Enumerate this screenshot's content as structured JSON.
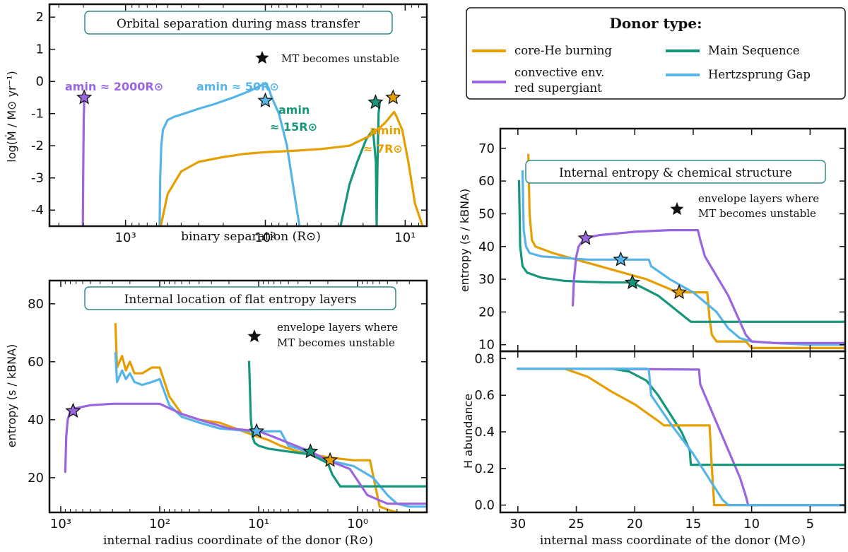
{
  "colors": {
    "core_he": "#E69F00",
    "rsg": "#9966E0",
    "ms": "#16967A",
    "hg": "#56B4E9",
    "title_box_border": "#2E8B8B"
  },
  "legend": {
    "title": "Donor type:",
    "entries": [
      {
        "key": "core_he",
        "label": "core-He burning"
      },
      {
        "key": "rsg",
        "label": "convective env.",
        "label2": "red supergiant"
      },
      {
        "key": "ms",
        "label": "Main Sequence"
      },
      {
        "key": "hg",
        "label": "Hertzsprung Gap"
      }
    ]
  },
  "chart_data": [
    {
      "id": "panel_a",
      "type": "line",
      "title": "Orbital separation during mass transfer",
      "xlabel": "binary separation (R⊙)",
      "ylabel": "log(Ṁ / M⊙ yr⁻¹)",
      "xscale": "log-reversed",
      "xlim": [
        3500,
        7
      ],
      "ylim": [
        -4.5,
        2.4
      ],
      "xticks": [
        {
          "v": 1000,
          "label": "10³"
        },
        {
          "v": 100,
          "label": "10²"
        },
        {
          "v": 10,
          "label": "10¹"
        }
      ],
      "yticks": [
        -4,
        -3,
        -2,
        -1,
        0,
        1,
        2
      ],
      "annotation": "MT becomes unstable",
      "amin_labels": [
        {
          "key": "rsg",
          "line1": "amin ≈ 2000R⊙"
        },
        {
          "key": "hg",
          "line1": "amin ≈ 50R⊙"
        },
        {
          "key": "ms",
          "line1": "amin",
          "line2": "≈ 15R⊙"
        },
        {
          "key": "core_he",
          "line1": "amin",
          "line2": "≈ 7R⊙"
        }
      ],
      "series": [
        {
          "key": "rsg",
          "x": [
            2020,
            2010,
            2000,
            1990,
            1980,
            1975
          ],
          "y": [
            -4.5,
            -3.0,
            -2.0,
            -1.2,
            -0.8,
            -0.5
          ]
        },
        {
          "key": "hg",
          "x": [
            570,
            565,
            555,
            540,
            500,
            450,
            380,
            300,
            230,
            170,
            130,
            110,
            100,
            95,
            90,
            80,
            70,
            62,
            57
          ],
          "y": [
            -4.5,
            -3.0,
            -2.0,
            -1.5,
            -1.2,
            -1.1,
            -1.0,
            -0.85,
            -0.7,
            -0.5,
            -0.3,
            -0.15,
            -0.05,
            -0.2,
            -0.5,
            -1.0,
            -2.0,
            -3.5,
            -4.5
          ]
        },
        {
          "key": "ms",
          "x": [
            29,
            25,
            22,
            19,
            17,
            16.2,
            16,
            15.8,
            15.5,
            15.2
          ],
          "y": [
            -4.5,
            -3.2,
            -2.5,
            -1.8,
            -1.5,
            -2.5,
            -4.5,
            -2.8,
            -1.0,
            -0.65
          ]
        },
        {
          "key": "core_he",
          "x": [
            560,
            500,
            400,
            300,
            200,
            140,
            100,
            60,
            40,
            25,
            18,
            14,
            12,
            11.5,
            10.5,
            9.5,
            8.5,
            7.5
          ],
          "y": [
            -4.5,
            -3.5,
            -2.8,
            -2.5,
            -2.35,
            -2.25,
            -2.2,
            -2.15,
            -2.1,
            -2.0,
            -1.7,
            -1.3,
            -0.95,
            -1.1,
            -1.5,
            -2.5,
            -3.8,
            -4.5
          ]
        }
      ],
      "stars": [
        {
          "key": "rsg",
          "x": 1975,
          "y": -0.5
        },
        {
          "key": "hg",
          "x": 100,
          "y": -0.6
        },
        {
          "key": "ms",
          "x": 16.3,
          "y": -0.65
        },
        {
          "key": "core_he",
          "x": 12.2,
          "y": -0.5
        }
      ]
    },
    {
      "id": "panel_b",
      "type": "line",
      "title": "Internal location of flat entropy layers",
      "xlabel": "internal radius coordinate of the donor (R⊙)",
      "ylabel": "entropy (s / kBNA)",
      "xscale": "log-reversed",
      "xlim": [
        1300,
        0.2
      ],
      "ylim": [
        8,
        88
      ],
      "xticks": [
        {
          "v": 1000,
          "label": "10³"
        },
        {
          "v": 100,
          "label": "10²"
        },
        {
          "v": 10,
          "label": "10¹"
        },
        {
          "v": 1,
          "label": "10⁰"
        }
      ],
      "yticks": [
        20,
        40,
        60,
        80
      ],
      "annotation": "envelope layers where",
      "annotation2": "MT becomes unstable",
      "series": [
        {
          "key": "core_he",
          "x": [
            280,
            270,
            240,
            220,
            200,
            180,
            150,
            120,
            100,
            80,
            60,
            40,
            25,
            12,
            8,
            6,
            4,
            2,
            1.1,
            1.0,
            0.75,
            0.6,
            0.5,
            0.4,
            0.3,
            0.2
          ],
          "y": [
            73,
            58,
            62,
            57,
            60,
            56,
            56,
            58,
            58,
            48,
            42,
            40,
            39,
            35,
            33,
            31,
            29,
            27,
            26,
            26,
            26,
            10,
            9,
            8,
            8,
            8
          ]
        },
        {
          "key": "hg",
          "x": [
            280,
            270,
            240,
            220,
            200,
            180,
            150,
            120,
            100,
            80,
            60,
            40,
            25,
            12,
            10,
            8,
            6,
            5,
            4,
            2,
            1.1,
            0.7,
            0.5,
            0.4,
            0.3,
            0.2
          ],
          "y": [
            63,
            53,
            57,
            54,
            56,
            53,
            52,
            53,
            54,
            45,
            41,
            39,
            37,
            36,
            36,
            36,
            36,
            31,
            30,
            26,
            24,
            20,
            14,
            11,
            10,
            10
          ]
        },
        {
          "key": "ms",
          "x": [
            12.5,
            12,
            11.5,
            11,
            10,
            8,
            5,
            3,
            2,
            1.8,
            1.5,
            1.0,
            0.5,
            0.3,
            0.2
          ],
          "y": [
            60,
            40,
            34,
            32,
            31,
            30,
            29,
            28,
            25,
            21,
            17,
            17,
            17,
            17,
            17
          ]
        },
        {
          "key": "rsg",
          "x": [
            900,
            880,
            850,
            800,
            700,
            500,
            300,
            200,
            100,
            60,
            40,
            20,
            10,
            7,
            5,
            3,
            2,
            1.2,
            1.0,
            0.8,
            0.5,
            0.3,
            0.2
          ],
          "y": [
            22,
            34,
            40,
            43,
            44,
            45,
            45.5,
            45.5,
            45.5,
            42,
            40,
            37,
            36,
            34,
            32,
            29,
            26,
            23,
            19,
            14,
            11,
            11,
            11
          ]
        }
      ],
      "stars": [
        {
          "key": "rsg",
          "x": 750,
          "y": 43
        },
        {
          "key": "hg",
          "x": 10.5,
          "y": 36
        },
        {
          "key": "ms",
          "x": 3.0,
          "y": 29
        },
        {
          "key": "core_he",
          "x": 1.9,
          "y": 26
        }
      ]
    },
    {
      "id": "panel_c",
      "type": "line",
      "title": "Internal entropy & chemical structure",
      "xlabel": "",
      "ylabel": "entropy (s / kBNA)",
      "xscale": "linear-reversed",
      "xlim": [
        31.5,
        2
      ],
      "ylim": [
        8,
        76
      ],
      "xticks": [
        30,
        25,
        20,
        15,
        10,
        5
      ],
      "yticks": [
        10,
        20,
        30,
        40,
        50,
        60,
        70
      ],
      "annotation": "envelope layers where",
      "annotation2": "MT becomes unstable",
      "series": [
        {
          "key": "core_he",
          "x": [
            29.1,
            29.0,
            28.8,
            28.5,
            27,
            25,
            23,
            21,
            19,
            17,
            16.5,
            13.8,
            13.6,
            13.4,
            13,
            10.5,
            10,
            5,
            2
          ],
          "y": [
            68,
            50,
            42,
            40,
            38,
            36,
            34,
            32,
            30,
            27,
            26,
            26,
            18,
            13,
            11,
            11,
            9,
            9,
            9
          ]
        },
        {
          "key": "hg",
          "x": [
            29.6,
            29.5,
            29.3,
            29,
            28,
            26,
            24,
            22,
            21.2,
            18.8,
            18.6,
            17,
            15,
            13,
            12,
            11,
            10,
            8,
            5,
            2
          ],
          "y": [
            63,
            45,
            40,
            38,
            37,
            36.5,
            36,
            36,
            36,
            36,
            34,
            30,
            26,
            20,
            15,
            12,
            11,
            10.5,
            10,
            10
          ]
        },
        {
          "key": "ms",
          "x": [
            29.9,
            29.8,
            29.6,
            29.2,
            28,
            26,
            24,
            22,
            20.2,
            18,
            15.2,
            15,
            10,
            5,
            2
          ],
          "y": [
            60,
            40,
            34,
            32,
            30.5,
            29.5,
            29.2,
            29,
            29,
            25,
            17,
            17,
            17,
            17,
            17
          ]
        },
        {
          "key": "rsg",
          "x": [
            25.3,
            25.2,
            25.0,
            24.8,
            24.3,
            23,
            20,
            17,
            14.6,
            14.4,
            14,
            12,
            11,
            10.5,
            10,
            8,
            5,
            2
          ],
          "y": [
            22,
            30,
            37,
            40,
            42.5,
            43.5,
            44.5,
            45,
            45,
            42,
            37,
            25,
            17,
            13,
            11,
            10.5,
            10.5,
            10.5
          ]
        }
      ],
      "stars": [
        {
          "key": "rsg",
          "x": 24.2,
          "y": 42.5
        },
        {
          "key": "hg",
          "x": 21.2,
          "y": 36
        },
        {
          "key": "ms",
          "x": 20.2,
          "y": 29
        },
        {
          "key": "core_he",
          "x": 16.2,
          "y": 26
        }
      ]
    },
    {
      "id": "panel_d",
      "type": "line",
      "title": "",
      "xlabel": "internal mass coordinate of the donor (M⊙)",
      "ylabel": "H abundance",
      "xscale": "linear-reversed",
      "xlim": [
        31.5,
        2
      ],
      "ylim": [
        -0.04,
        0.84
      ],
      "xticks": [
        30,
        25,
        20,
        15,
        10,
        5
      ],
      "yticks": [
        0.0,
        0.2,
        0.4,
        0.6,
        0.8
      ],
      "series": [
        {
          "key": "rsg",
          "x": [
            30,
            24.5,
            14.5,
            14.4,
            14,
            13,
            12,
            11,
            10.5,
            10.3,
            2
          ],
          "y": [
            0.745,
            0.745,
            0.74,
            0.66,
            0.6,
            0.45,
            0.3,
            0.15,
            0.05,
            0.0,
            0.0
          ]
        },
        {
          "key": "ms",
          "x": [
            30,
            22,
            20.5,
            19,
            18,
            17,
            16,
            15.3,
            15.2,
            10,
            2
          ],
          "y": [
            0.745,
            0.745,
            0.73,
            0.68,
            0.6,
            0.5,
            0.4,
            0.3,
            0.22,
            0.22,
            0.22
          ]
        },
        {
          "key": "core_he",
          "x": [
            30,
            26,
            24,
            22,
            20,
            18,
            17.5,
            16,
            13.6,
            13.4,
            13.2,
            2
          ],
          "y": [
            0.745,
            0.745,
            0.7,
            0.62,
            0.55,
            0.46,
            0.435,
            0.435,
            0.435,
            0.2,
            0.0,
            0.0
          ]
        },
        {
          "key": "hg",
          "x": [
            30,
            19,
            18.8,
            18.6,
            17,
            15,
            14,
            13,
            12.5,
            12,
            2
          ],
          "y": [
            0.745,
            0.745,
            0.74,
            0.6,
            0.45,
            0.28,
            0.18,
            0.08,
            0.03,
            0.0,
            0.0
          ]
        }
      ]
    }
  ]
}
